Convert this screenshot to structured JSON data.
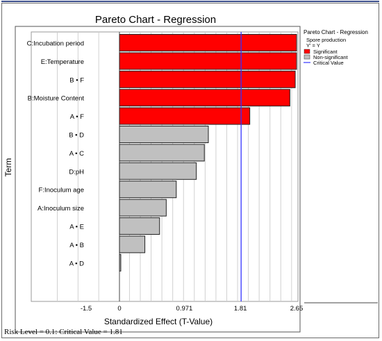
{
  "chart_data": {
    "type": "bar",
    "orientation": "horizontal",
    "title": "Pareto Chart - Regression",
    "xlabel": "Standardized Effect (T-Value)",
    "ylabel": "Term",
    "xlim": [
      -1.5,
      2.65
    ],
    "x_ticks": [
      "-1.5",
      "0",
      "0.971",
      "1.81",
      "2.65"
    ],
    "x_tick_values": [
      -1.5,
      0,
      0.971,
      1.81,
      2.65
    ],
    "critical_value": 1.81,
    "categories": [
      "C:Incubation period",
      "E:Temperature",
      "B • F",
      "B:Moisture Content",
      "A • F",
      "B • D",
      "A • C",
      "D:pH",
      "F:Inoculum age",
      "A:Inoculum size",
      "A • E",
      "A • B",
      "A • D"
    ],
    "values": [
      2.65,
      2.65,
      2.63,
      2.55,
      1.95,
      1.33,
      1.27,
      1.15,
      0.85,
      0.7,
      0.6,
      0.38,
      0.02
    ],
    "significant": [
      true,
      true,
      true,
      true,
      true,
      false,
      false,
      false,
      false,
      false,
      false,
      false,
      false
    ],
    "colors": {
      "significant": "#ff0000",
      "non_significant": "#c0c0c0",
      "critical": "#3333ff",
      "bar_edge": "#222222",
      "grid": "#d0d0d0"
    },
    "grid": true,
    "legend_position": "right"
  },
  "legend": {
    "title": "Pareto Chart - Regression",
    "response": "Spore production",
    "response_eq": "Y' = Y",
    "items": [
      {
        "label": "Significant",
        "color": "#ff0000",
        "kind": "box"
      },
      {
        "label": "Non-significant",
        "color": "#c0c0c0",
        "kind": "box"
      },
      {
        "label": "Critical Value",
        "color": "#3333ff",
        "kind": "line"
      }
    ]
  },
  "footer": "Risk Level = 0.1: Critical Value = 1.81"
}
